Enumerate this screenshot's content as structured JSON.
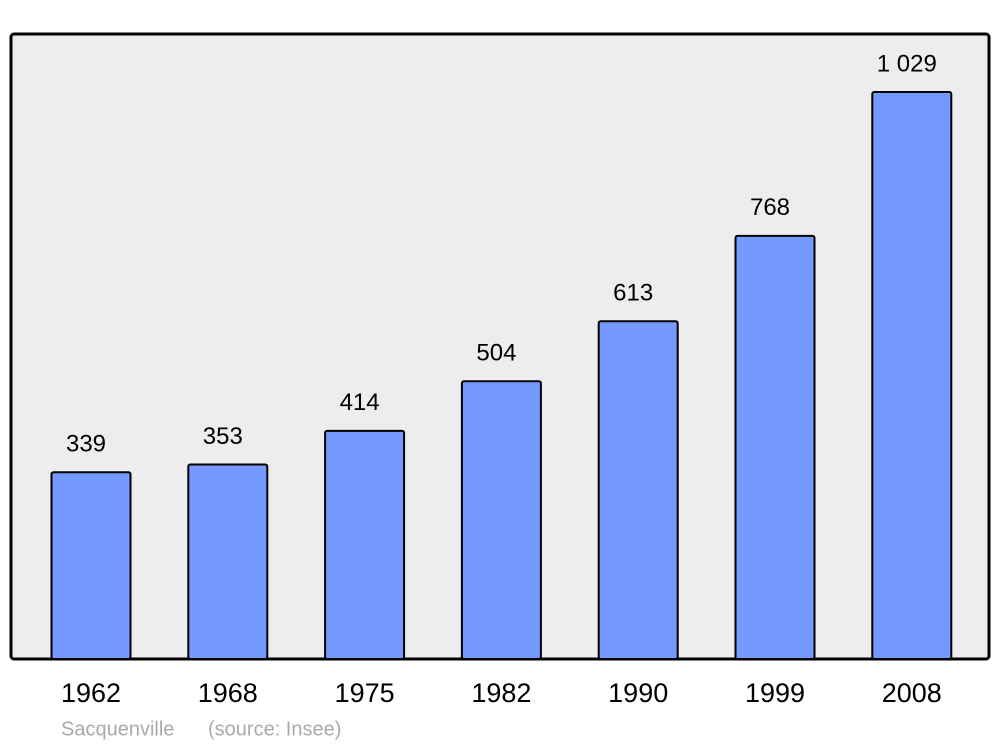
{
  "chart_data": {
    "type": "bar",
    "categories": [
      "1962",
      "1968",
      "1975",
      "1982",
      "1990",
      "1999",
      "2008"
    ],
    "values": [
      339,
      353,
      414,
      504,
      613,
      768,
      1029
    ],
    "value_labels": [
      "339",
      "353",
      "414",
      "504",
      "613",
      "768",
      "1 029"
    ],
    "color": "#7499ff",
    "place": "Sacquenville",
    "source": "(source: Insee)"
  }
}
